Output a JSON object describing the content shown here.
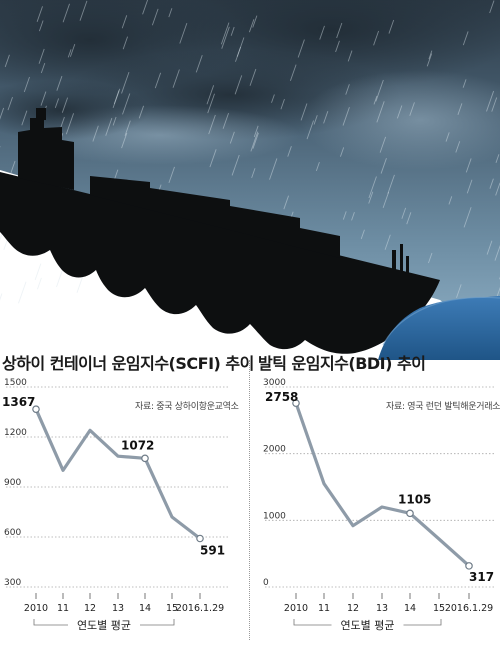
{
  "colors": {
    "line": "#8e9ba8",
    "point_fill": "#ffffff",
    "grid": "#a9a9a9",
    "sea": "#2f6aa3",
    "hull": "#0d0f10"
  },
  "chart_data": [
    {
      "type": "line",
      "title": "상하이 컨테이너 운임지수(SCFI) 추이",
      "source": "자료: 중국 상하이항운교역소",
      "x": [
        "2010",
        "11",
        "12",
        "13",
        "14",
        "15",
        "2016.1.29"
      ],
      "values": [
        1367,
        1000,
        1240,
        1085,
        1072,
        720,
        591
      ],
      "yticks": [
        1500,
        1200,
        900,
        600,
        300
      ],
      "ylim": [
        300,
        1500
      ],
      "data_labels": [
        {
          "index": 0,
          "text": "1367"
        },
        {
          "index": 4,
          "text": "1072"
        },
        {
          "index": 6,
          "text": "591"
        }
      ],
      "annotation": "연도별 평균",
      "grid": true
    },
    {
      "type": "line",
      "title": "발틱 운임지수(BDI) 추이",
      "source": "자료: 영국 런던 발틱해운거래소",
      "x": [
        "2010",
        "11",
        "12",
        "13",
        "14",
        "15",
        "2016.1.29"
      ],
      "values": [
        2758,
        1550,
        920,
        1200,
        1105,
        720,
        317
      ],
      "yticks": [
        3000,
        2000,
        1000,
        0
      ],
      "ylim": [
        0,
        3000
      ],
      "data_labels": [
        {
          "index": 0,
          "text": "2758"
        },
        {
          "index": 4,
          "text": "1105"
        },
        {
          "index": 6,
          "text": "317"
        }
      ],
      "annotation": "연도별 평균",
      "grid": true
    }
  ]
}
